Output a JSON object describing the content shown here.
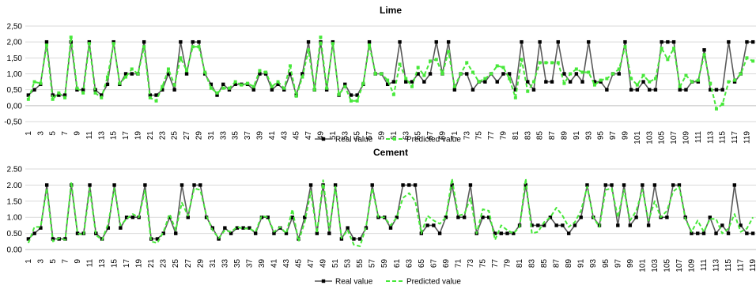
{
  "chart_data": [
    {
      "type": "line",
      "title": "Lime",
      "ylim": [
        -0.5,
        2.5
      ],
      "yticks": [
        "2,50",
        "2,00",
        "1,50",
        "1,00",
        "0,50",
        "0,00",
        "-0,50"
      ],
      "ytick_values": [
        2.5,
        2.0,
        1.5,
        1.0,
        0.5,
        0.0,
        -0.5
      ],
      "x": [
        1,
        2,
        3,
        4,
        5,
        6,
        7,
        8,
        9,
        10,
        11,
        12,
        13,
        14,
        15,
        16,
        17,
        18,
        19,
        20,
        21,
        22,
        23,
        24,
        25,
        26,
        27,
        28,
        29,
        30,
        31,
        32,
        33,
        34,
        35,
        36,
        37,
        38,
        39,
        40,
        41,
        42,
        43,
        44,
        45,
        46,
        47,
        48,
        49,
        50,
        51,
        52,
        53,
        54,
        55,
        56,
        57,
        58,
        59,
        60,
        61,
        62,
        63,
        64,
        65,
        66,
        67,
        68,
        69,
        70,
        71,
        72,
        73,
        74,
        75,
        76,
        77,
        78,
        79,
        80,
        81,
        82,
        83,
        84,
        85,
        86,
        87,
        88,
        89,
        90,
        91,
        92,
        93,
        94,
        95,
        96,
        97,
        98,
        99,
        100,
        101,
        102,
        103,
        104,
        105,
        106,
        107,
        108,
        109,
        110,
        111,
        112,
        113,
        114,
        115,
        116,
        117,
        118,
        119,
        120
      ],
      "xtick_labels": [
        "1",
        "3",
        "5",
        "7",
        "9",
        "11",
        "13",
        "15",
        "17",
        "19",
        "21",
        "23",
        "25",
        "27",
        "29",
        "31",
        "33",
        "35",
        "37",
        "39",
        "41",
        "43",
        "45",
        "47",
        "49",
        "51",
        "53",
        "55",
        "57",
        "59",
        "61",
        "63",
        "65",
        "67",
        "69",
        "71",
        "73",
        "75",
        "77",
        "79",
        "81",
        "83",
        "85",
        "87",
        "89",
        "91",
        "93",
        "95",
        "97",
        "99",
        "101",
        "103",
        "105",
        "107",
        "109",
        "111",
        "113",
        "115",
        "117",
        "119"
      ],
      "legend": "bottom",
      "grid": true,
      "series": [
        {
          "name": "Real value",
          "color": "#595959",
          "values": [
            0.33,
            0.5,
            0.67,
            2.0,
            0.33,
            0.33,
            0.33,
            2.0,
            0.5,
            0.5,
            2.0,
            0.5,
            0.33,
            0.67,
            2.0,
            0.67,
            1.0,
            1.0,
            1.0,
            2.0,
            0.33,
            0.33,
            0.5,
            1.0,
            0.5,
            2.0,
            1.0,
            2.0,
            2.0,
            1.0,
            0.67,
            0.33,
            0.67,
            0.5,
            0.67,
            0.67,
            0.67,
            0.5,
            1.0,
            1.0,
            0.5,
            0.67,
            0.5,
            1.0,
            0.33,
            1.0,
            2.0,
            0.5,
            2.0,
            0.5,
            2.0,
            0.33,
            0.67,
            0.33,
            0.33,
            0.67,
            2.0,
            1.0,
            1.0,
            0.67,
            0.75,
            2.0,
            0.75,
            0.75,
            1.0,
            0.75,
            1.0,
            2.0,
            1.0,
            2.0,
            0.5,
            1.0,
            1.0,
            0.5,
            0.75,
            0.75,
            1.0,
            0.75,
            1.0,
            1.0,
            0.5,
            2.0,
            0.75,
            0.5,
            2.0,
            0.75,
            0.75,
            2.0,
            1.0,
            0.75,
            1.0,
            0.75,
            2.0,
            0.75,
            0.75,
            0.5,
            1.0,
            1.0,
            2.0,
            0.5,
            0.5,
            0.75,
            0.5,
            0.5,
            2.0,
            2.0,
            2.0,
            0.5,
            0.5,
            0.75,
            0.75,
            1.75,
            0.5,
            0.5,
            0.5,
            2.0,
            0.75,
            1.0,
            2.0,
            2.0
          ]
        },
        {
          "name": "Predicted value",
          "color": "#47e83a",
          "values": [
            0.2,
            0.75,
            0.7,
            1.9,
            0.2,
            0.4,
            0.25,
            2.15,
            0.55,
            0.4,
            1.95,
            0.4,
            0.25,
            0.9,
            1.95,
            0.7,
            0.9,
            1.15,
            1.0,
            1.85,
            0.25,
            0.15,
            0.6,
            1.15,
            0.65,
            1.5,
            1.1,
            1.85,
            1.85,
            1.05,
            0.55,
            0.4,
            0.55,
            0.55,
            0.75,
            0.65,
            0.7,
            0.6,
            1.1,
            1.05,
            0.6,
            0.75,
            0.55,
            1.25,
            0.3,
            0.9,
            1.75,
            0.5,
            2.15,
            0.55,
            1.95,
            0.35,
            0.6,
            0.15,
            0.15,
            0.7,
            1.9,
            1.0,
            1.0,
            0.8,
            0.35,
            1.3,
            0.85,
            0.6,
            1.2,
            0.95,
            1.4,
            1.45,
            1.0,
            1.7,
            0.6,
            1.0,
            1.35,
            1.05,
            0.75,
            0.85,
            1.0,
            1.25,
            1.2,
            0.85,
            0.25,
            1.45,
            0.45,
            0.75,
            1.35,
            1.35,
            1.35,
            1.35,
            0.7,
            1.0,
            1.15,
            1.05,
            1.05,
            0.65,
            0.8,
            0.85,
            1.0,
            1.15,
            1.85,
            0.85,
            0.65,
            0.95,
            0.75,
            0.85,
            1.8,
            1.45,
            1.8,
            0.6,
            0.95,
            0.75,
            0.8,
            1.6,
            0.7,
            -0.1,
            0.05,
            0.75,
            0.8,
            1.0,
            1.5,
            1.4
          ]
        }
      ]
    },
    {
      "type": "line",
      "title": "Cement",
      "ylim": [
        0.0,
        2.5
      ],
      "yticks": [
        "2.50",
        "2.00",
        "1.50",
        "1.00",
        "0.50",
        "0.00"
      ],
      "ytick_values": [
        2.5,
        2.0,
        1.5,
        1.0,
        0.5,
        0.0
      ],
      "x": [
        1,
        2,
        3,
        4,
        5,
        6,
        7,
        8,
        9,
        10,
        11,
        12,
        13,
        14,
        15,
        16,
        17,
        18,
        19,
        20,
        21,
        22,
        23,
        24,
        25,
        26,
        27,
        28,
        29,
        30,
        31,
        32,
        33,
        34,
        35,
        36,
        37,
        38,
        39,
        40,
        41,
        42,
        43,
        44,
        45,
        46,
        47,
        48,
        49,
        50,
        51,
        52,
        53,
        54,
        55,
        56,
        57,
        58,
        59,
        60,
        61,
        62,
        63,
        64,
        65,
        66,
        67,
        68,
        69,
        70,
        71,
        72,
        73,
        74,
        75,
        76,
        77,
        78,
        79,
        80,
        81,
        82,
        83,
        84,
        85,
        86,
        87,
        88,
        89,
        90,
        91,
        92,
        93,
        94,
        95,
        96,
        97,
        98,
        99,
        100,
        101,
        102,
        103,
        104,
        105,
        106,
        107,
        108,
        109,
        110,
        111,
        112,
        113,
        114,
        115,
        116,
        117,
        118,
        119
      ],
      "xtick_labels": [
        "1",
        "3",
        "5",
        "7",
        "9",
        "11",
        "13",
        "15",
        "17",
        "19",
        "21",
        "23",
        "25",
        "27",
        "29",
        "31",
        "33",
        "35",
        "37",
        "39",
        "41",
        "43",
        "45",
        "47",
        "49",
        "51",
        "53",
        "55",
        "57",
        "59",
        "61",
        "63",
        "65",
        "67",
        "69",
        "71",
        "73",
        "75",
        "77",
        "79",
        "81",
        "83",
        "85",
        "87",
        "89",
        "91",
        "93",
        "95",
        "97",
        "99",
        "101",
        "103",
        "105",
        "107",
        "109",
        "111",
        "113",
        "115",
        "117",
        "119"
      ],
      "legend": "bottom",
      "grid": true,
      "series": [
        {
          "name": "Real value",
          "color": "#595959",
          "values": [
            0.33,
            0.5,
            0.67,
            2.0,
            0.33,
            0.33,
            0.33,
            2.0,
            0.5,
            0.5,
            2.0,
            0.5,
            0.33,
            0.67,
            2.0,
            0.67,
            1.0,
            1.0,
            1.0,
            2.0,
            0.33,
            0.33,
            0.5,
            1.0,
            0.5,
            2.0,
            1.0,
            2.0,
            2.0,
            1.0,
            0.67,
            0.33,
            0.67,
            0.5,
            0.67,
            0.67,
            0.67,
            0.5,
            1.0,
            1.0,
            0.5,
            0.67,
            0.5,
            1.0,
            0.33,
            1.0,
            2.0,
            0.5,
            2.0,
            0.5,
            2.0,
            0.33,
            0.67,
            0.33,
            0.33,
            0.67,
            2.0,
            1.0,
            1.0,
            0.67,
            1.0,
            2.0,
            2.0,
            2.0,
            0.5,
            0.75,
            0.75,
            0.5,
            1.0,
            2.0,
            1.0,
            1.0,
            2.0,
            0.5,
            1.0,
            1.0,
            0.5,
            0.5,
            0.5,
            0.5,
            0.75,
            2.0,
            0.75,
            0.75,
            0.75,
            1.0,
            0.75,
            0.75,
            0.5,
            0.75,
            1.0,
            2.0,
            1.0,
            0.75,
            2.0,
            2.0,
            0.75,
            2.0,
            0.75,
            1.0,
            2.0,
            0.75,
            2.0,
            1.0,
            1.0,
            2.0,
            2.0,
            1.0,
            0.5,
            0.5,
            0.5,
            1.0,
            0.5,
            0.75,
            0.5,
            2.0,
            0.75,
            0.5,
            0.5
          ]
        },
        {
          "name": "Predicted value",
          "color": "#47e83a",
          "values": [
            0.2,
            0.7,
            0.7,
            1.9,
            0.25,
            0.35,
            0.3,
            2.1,
            0.5,
            0.45,
            1.9,
            0.45,
            0.3,
            0.8,
            1.9,
            0.75,
            0.95,
            1.1,
            1.0,
            1.85,
            0.25,
            0.2,
            0.55,
            1.1,
            0.6,
            1.45,
            1.05,
            1.9,
            1.85,
            1.05,
            0.6,
            0.35,
            0.6,
            0.55,
            0.7,
            0.65,
            0.65,
            0.55,
            1.05,
            1.0,
            0.55,
            0.7,
            0.5,
            1.25,
            0.25,
            0.85,
            1.8,
            0.5,
            2.15,
            0.6,
            1.95,
            0.35,
            0.6,
            0.15,
            0.1,
            0.7,
            1.9,
            1.0,
            1.0,
            0.75,
            1.0,
            1.6,
            1.75,
            1.5,
            0.5,
            1.05,
            0.9,
            0.8,
            1.0,
            2.2,
            1.05,
            1.1,
            1.6,
            0.5,
            1.25,
            1.2,
            0.3,
            0.75,
            0.6,
            0.5,
            0.7,
            2.2,
            0.5,
            0.55,
            0.85,
            1.0,
            1.3,
            1.05,
            0.7,
            0.85,
            1.2,
            1.95,
            1.0,
            0.7,
            1.85,
            1.9,
            1.0,
            1.85,
            0.9,
            1.2,
            1.85,
            0.9,
            1.5,
            1.0,
            1.2,
            1.8,
            1.95,
            0.95,
            0.55,
            0.9,
            0.55,
            0.95,
            0.95,
            0.5,
            0.65,
            1.1,
            0.55,
            0.65,
            1.0
          ]
        }
      ]
    }
  ]
}
